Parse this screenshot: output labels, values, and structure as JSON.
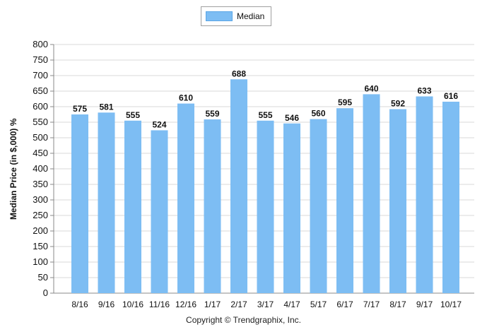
{
  "legend": {
    "label": "Median",
    "color": "#7dbdf3"
  },
  "footer": {
    "copyright": "Copyright © Trendgraphix, Inc."
  },
  "chart_data": {
    "type": "bar",
    "title": "",
    "xlabel": "",
    "ylabel": "Median Price (in $,000) %",
    "ylim": [
      0,
      800
    ],
    "ytick_step": 50,
    "grid": true,
    "legend_position": "top-center",
    "categories": [
      "8/16",
      "9/16",
      "10/16",
      "11/16",
      "12/16",
      "1/17",
      "2/17",
      "3/17",
      "4/17",
      "5/17",
      "6/17",
      "7/17",
      "8/17",
      "9/17",
      "10/17"
    ],
    "series": [
      {
        "name": "Median",
        "values": [
          575,
          581,
          555,
          524,
          610,
          559,
          688,
          555,
          546,
          560,
          595,
          640,
          592,
          633,
          616
        ],
        "color": "#7dbdf3"
      }
    ]
  }
}
